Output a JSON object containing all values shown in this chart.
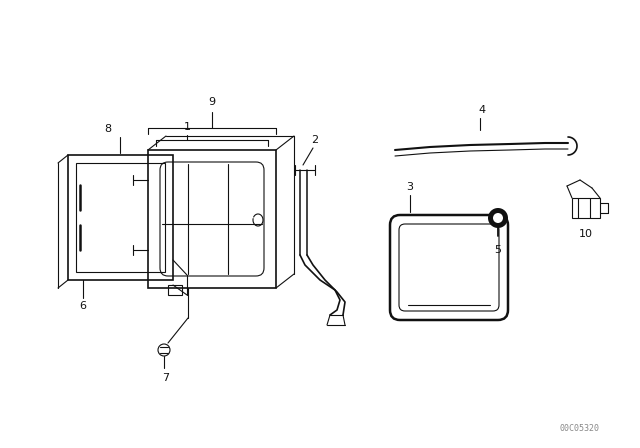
{
  "bg_color": "#ffffff",
  "line_color": "#111111",
  "figure_width": 6.4,
  "figure_height": 4.48,
  "dpi": 100,
  "watermark": "00C05320"
}
